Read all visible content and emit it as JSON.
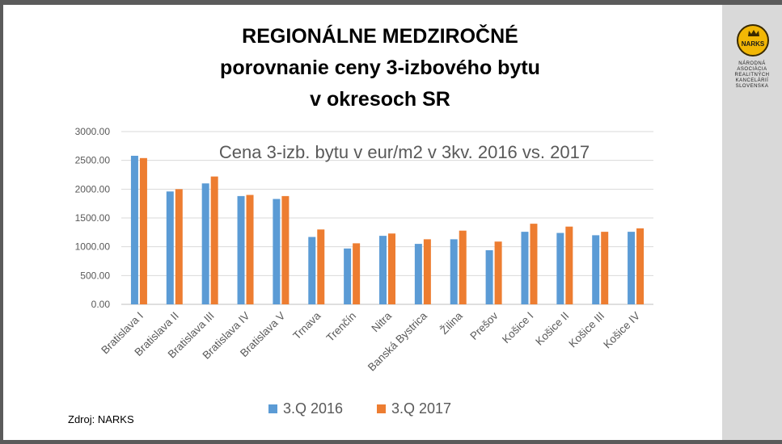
{
  "title_lines": [
    "REGIONÁLNE MEDZIROČNÉ",
    "porovnanie ceny 3-izbového bytu",
    "v okresoch SR"
  ],
  "logo": {
    "text": "NARKS",
    "assoc_lines": [
      "NÁRODNÁ",
      "ASOCIÁCIA",
      "REALITNÝCH",
      "KANCELÁRIÍ",
      "SLOVENSKA"
    ]
  },
  "source": "Zdroj: NARKS",
  "colors": {
    "series_2016": "#5b9bd5",
    "series_2017": "#ed7d31",
    "grid": "#d9d9d9",
    "text": "#595959"
  },
  "chart_data": {
    "type": "bar",
    "title": "Cena 3-izb. bytu v eur/m2 v 3kv. 2016 vs. 2017",
    "xlabel": "",
    "ylabel": "",
    "ylim": [
      0,
      3000
    ],
    "yticks": [
      "0.00",
      "500.00",
      "1000.00",
      "1500.00",
      "2000.00",
      "2500.00",
      "3000.00"
    ],
    "grid": true,
    "legend_position": "bottom",
    "categories": [
      "Bratislava I",
      "Bratislava II",
      "Bratislava III",
      "Bratislava IV",
      "Bratislava V",
      "Trnava",
      "Trenčín",
      "Nitra",
      "Banská Bystrica",
      "Žilina",
      "Prešov",
      "Košice I",
      "Košice II",
      "Košice III",
      "Košice IV"
    ],
    "series": [
      {
        "name": "3.Q 2016",
        "values": [
          2580,
          1960,
          2100,
          1880,
          1830,
          1170,
          970,
          1190,
          1050,
          1130,
          940,
          1260,
          1240,
          1200,
          1260
        ]
      },
      {
        "name": "3.Q 2017",
        "values": [
          2540,
          2000,
          2220,
          1900,
          1880,
          1300,
          1060,
          1230,
          1130,
          1280,
          1090,
          1400,
          1350,
          1260,
          1320
        ]
      }
    ]
  }
}
